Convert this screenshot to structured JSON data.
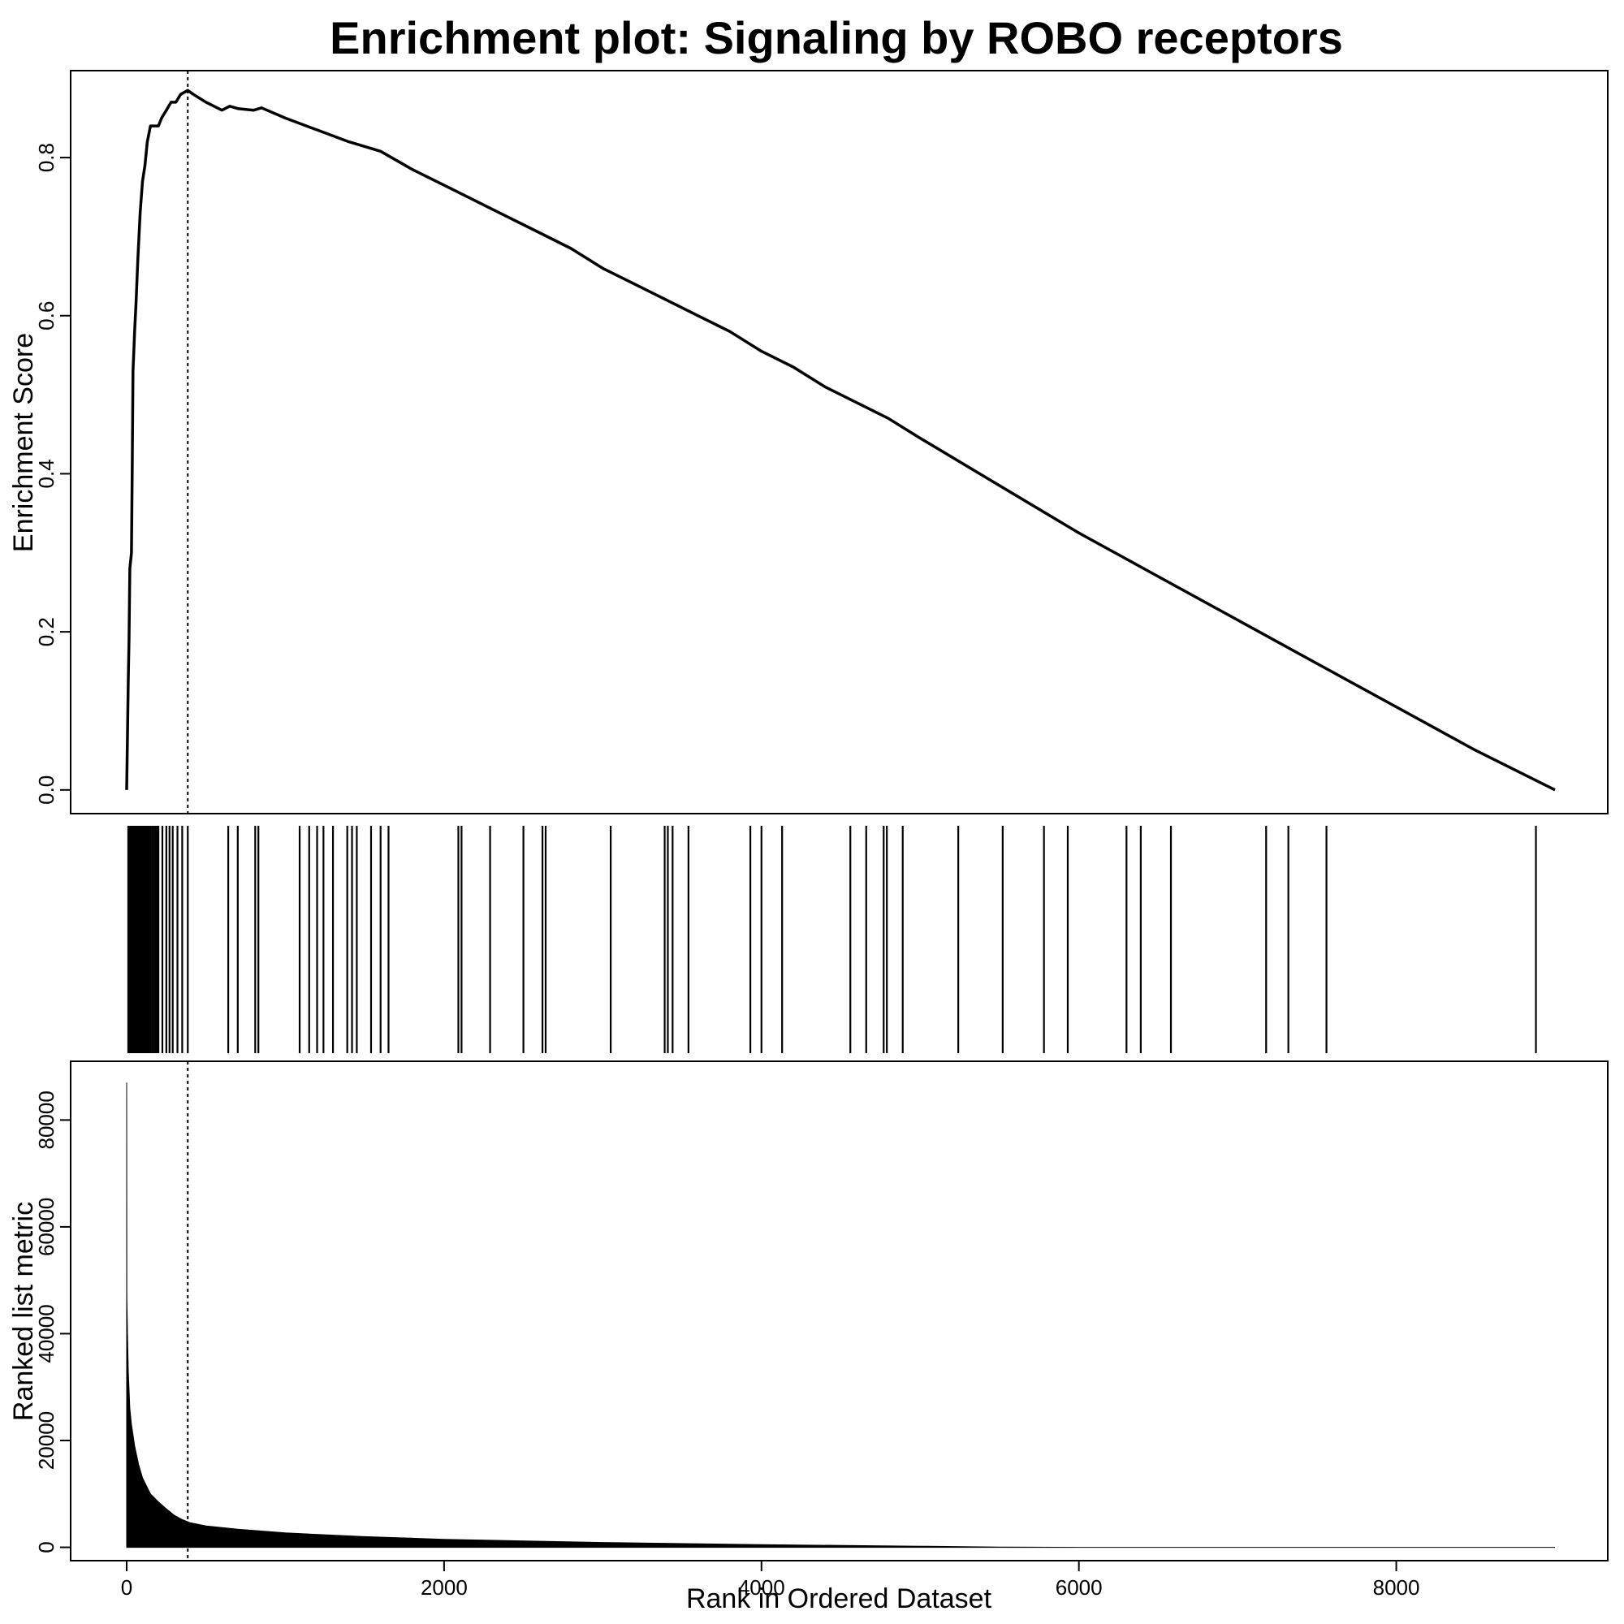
{
  "chart_data": {
    "title": "Enrichment plot: Signaling by ROBO receptors",
    "type": "line",
    "grid": false,
    "legend": "none",
    "colors": {
      "line": "#000000",
      "background": "#ffffff"
    },
    "x_max": 9000,
    "peak_rank": 385,
    "enrichment_panel": {
      "ylabel": "Enrichment Score",
      "ylim": [
        -0.03,
        0.91
      ],
      "yticks": [
        0.0,
        0.2,
        0.4,
        0.6,
        0.8
      ],
      "ytick_labels": [
        "0.0",
        "0.2",
        "0.4",
        "0.6",
        "0.8"
      ],
      "series": [
        {
          "points": [
            [
              0,
              0.0
            ],
            [
              10,
              0.14
            ],
            [
              15,
              0.19
            ],
            [
              20,
              0.28
            ],
            [
              30,
              0.3
            ],
            [
              35,
              0.4
            ],
            [
              40,
              0.53
            ],
            [
              50,
              0.58
            ],
            [
              60,
              0.62
            ],
            [
              70,
              0.67
            ],
            [
              85,
              0.73
            ],
            [
              100,
              0.77
            ],
            [
              115,
              0.79
            ],
            [
              130,
              0.82
            ],
            [
              150,
              0.84
            ],
            [
              175,
              0.84
            ],
            [
              200,
              0.84
            ],
            [
              220,
              0.85
            ],
            [
              250,
              0.86
            ],
            [
              280,
              0.87
            ],
            [
              310,
              0.87
            ],
            [
              340,
              0.88
            ],
            [
              385,
              0.885
            ],
            [
              420,
              0.88
            ],
            [
              500,
              0.87
            ],
            [
              600,
              0.86
            ],
            [
              650,
              0.865
            ],
            [
              700,
              0.862
            ],
            [
              800,
              0.86
            ],
            [
              850,
              0.863
            ],
            [
              1000,
              0.85
            ],
            [
              1200,
              0.835
            ],
            [
              1400,
              0.82
            ],
            [
              1600,
              0.808
            ],
            [
              1800,
              0.785
            ],
            [
              2000,
              0.765
            ],
            [
              2200,
              0.745
            ],
            [
              2400,
              0.725
            ],
            [
              2600,
              0.705
            ],
            [
              2800,
              0.685
            ],
            [
              3000,
              0.66
            ],
            [
              3200,
              0.64
            ],
            [
              3400,
              0.62
            ],
            [
              3600,
              0.6
            ],
            [
              3800,
              0.58
            ],
            [
              4000,
              0.555
            ],
            [
              4200,
              0.535
            ],
            [
              4400,
              0.51
            ],
            [
              4600,
              0.49
            ],
            [
              4800,
              0.47
            ],
            [
              5000,
              0.445
            ],
            [
              5500,
              0.385
            ],
            [
              6000,
              0.325
            ],
            [
              6500,
              0.27
            ],
            [
              7000,
              0.215
            ],
            [
              7500,
              0.16
            ],
            [
              8000,
              0.105
            ],
            [
              8500,
              0.05
            ],
            [
              9000,
              0.0
            ]
          ]
        }
      ]
    },
    "hits_panel": {
      "hit_ranks": [
        10,
        15,
        20,
        25,
        30,
        35,
        40,
        45,
        50,
        55,
        60,
        65,
        70,
        75,
        80,
        85,
        90,
        95,
        100,
        105,
        110,
        120,
        130,
        140,
        150,
        160,
        170,
        180,
        190,
        200,
        225,
        250,
        270,
        290,
        320,
        350,
        385,
        640,
        700,
        810,
        830,
        1090,
        1150,
        1200,
        1240,
        1300,
        1390,
        1420,
        1450,
        1540,
        1600,
        1650,
        2090,
        2110,
        2290,
        2500,
        2620,
        2640,
        3050,
        3390,
        3410,
        3440,
        3540,
        3930,
        4000,
        4130,
        4560,
        4660,
        4770,
        4790,
        4890,
        5240,
        5520,
        5780,
        5930,
        6300,
        6390,
        6580,
        7180,
        7320,
        7560,
        8880
      ]
    },
    "ranked_panel": {
      "ylabel": "Ranked list metric",
      "xlabel": "Rank in Ordered Dataset",
      "ylim": [
        -2500,
        91000
      ],
      "yticks": [
        0,
        20000,
        40000,
        60000,
        80000
      ],
      "ytick_labels": [
        "0",
        "20000",
        "40000",
        "60000",
        "80000"
      ],
      "xticks": [
        0,
        2000,
        4000,
        6000,
        8000
      ],
      "xtick_labels": [
        "0",
        "2000",
        "4000",
        "6000",
        "8000"
      ],
      "series": [
        {
          "points": [
            [
              0,
              87000
            ],
            [
              1,
              47000
            ],
            [
              5,
              40000
            ],
            [
              10,
              33000
            ],
            [
              20,
              26000
            ],
            [
              30,
              23000
            ],
            [
              50,
              19000
            ],
            [
              75,
              15500
            ],
            [
              100,
              13000
            ],
            [
              150,
              10000
            ],
            [
              200,
              8500
            ],
            [
              250,
              7200
            ],
            [
              300,
              6000
            ],
            [
              350,
              5200
            ],
            [
              400,
              4600
            ],
            [
              500,
              4000
            ],
            [
              700,
              3400
            ],
            [
              1000,
              2700
            ],
            [
              1500,
              2000
            ],
            [
              2000,
              1500
            ],
            [
              3000,
              900
            ],
            [
              4000,
              500
            ],
            [
              5000,
              200
            ],
            [
              5500,
              50
            ],
            [
              6000,
              0
            ],
            [
              9000,
              0
            ]
          ]
        }
      ]
    }
  }
}
